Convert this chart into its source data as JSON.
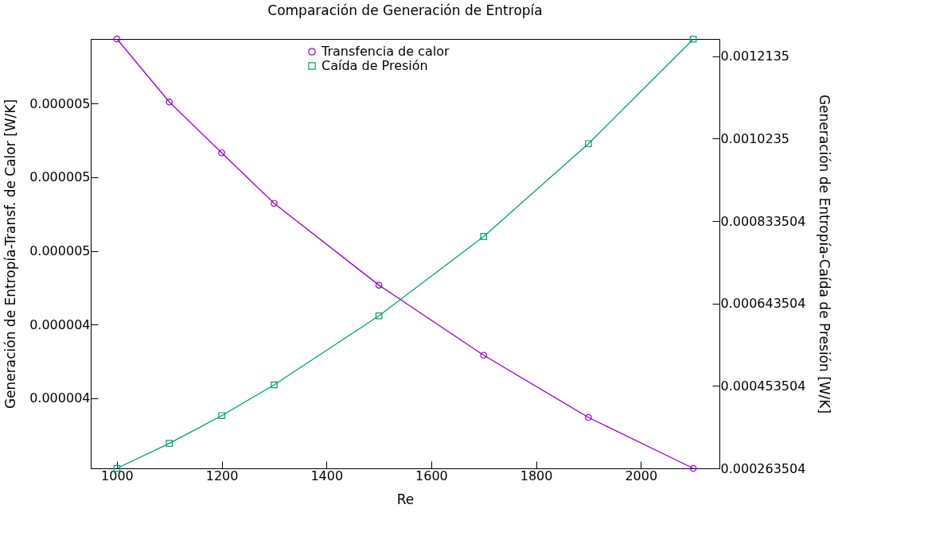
{
  "chart_data": {
    "type": "line",
    "title": "Comparación de Generación de Entropía",
    "xlabel": "Re",
    "ylabel": "Generación de Entropía-Transf. de Calor [W/K]",
    "y2label": "Generación de Entropía-Caída de Presión [W/K]",
    "x": [
      1000,
      1100,
      1200,
      1300,
      1500,
      1700,
      1900,
      2100
    ],
    "series": [
      {
        "name": "Transfencia de calor",
        "color": "#9400d3",
        "marker": "circle",
        "values": [
          5.175e-06,
          5.004e-06,
          4.866e-06,
          4.729e-06,
          4.507e-06,
          4.317e-06,
          4.148e-06,
          4.01e-06
        ]
      },
      {
        "name": "Caída de Presión",
        "color": "#009e73",
        "marker": "square",
        "axis": "y2",
        "values": [
          0.000263504,
          0.000321,
          0.000385,
          0.000456,
          0.000615,
          0.000798,
          0.001012,
          0.001253
        ]
      }
    ],
    "xlim": [
      950,
      2150
    ],
    "xticks": [
      1000,
      1200,
      1400,
      1600,
      1800,
      2000
    ],
    "ylim": [
      4.01e-06,
      5.175e-06
    ],
    "yticks": [
      {
        "value": 4.2e-06,
        "label": "0.000004"
      },
      {
        "value": 4.4e-06,
        "label": "0.000004"
      },
      {
        "value": 4.6e-06,
        "label": "0.000005"
      },
      {
        "value": 4.8e-06,
        "label": "0.000005"
      },
      {
        "value": 5e-06,
        "label": "0.000005"
      }
    ],
    "y2lim": [
      0.000263504,
      0.0012534
    ],
    "y2ticks": [
      0.000263504,
      0.000453504,
      0.000643504,
      0.000833504,
      0.0010235,
      0.0012135
    ],
    "grid": false,
    "legend": "top",
    "line_style": "solid"
  }
}
